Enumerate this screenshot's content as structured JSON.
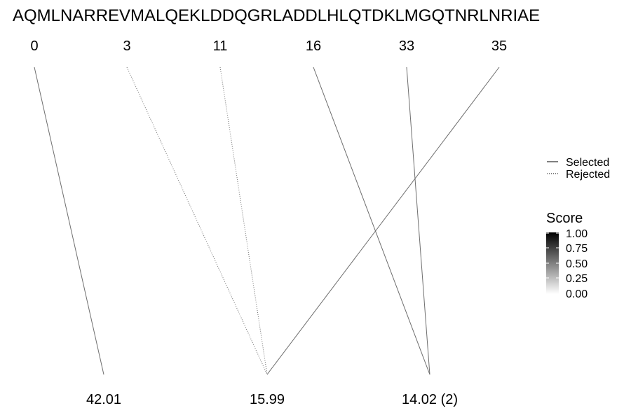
{
  "sequence": "AQMLNARREVMALQEKLDDQGRLADDLHLQTDKLMGQTNRLNRIAE",
  "positions": [
    "0",
    "3",
    "11",
    "16",
    "33",
    "35"
  ],
  "scores": [
    "42.01",
    "15.99",
    "14.02 (2)"
  ],
  "links": [
    {
      "from": 0,
      "to": 0,
      "status": "selected"
    },
    {
      "from": 1,
      "to": 1,
      "status": "rejected"
    },
    {
      "from": 2,
      "to": 1,
      "status": "rejected"
    },
    {
      "from": 5,
      "to": 1,
      "status": "selected"
    },
    {
      "from": 3,
      "to": 2,
      "status": "selected"
    },
    {
      "from": 4,
      "to": 2,
      "status": "selected"
    }
  ],
  "legend": {
    "line_type": {
      "selected": "Selected",
      "rejected": "Rejected"
    },
    "score": {
      "title": "Score",
      "ticks": [
        "1.00",
        "0.75",
        "0.50",
        "0.25",
        "0.00"
      ],
      "color_high": "#000000",
      "color_low": "#ffffff"
    }
  },
  "colors": {
    "line": "#6e6e6e"
  }
}
